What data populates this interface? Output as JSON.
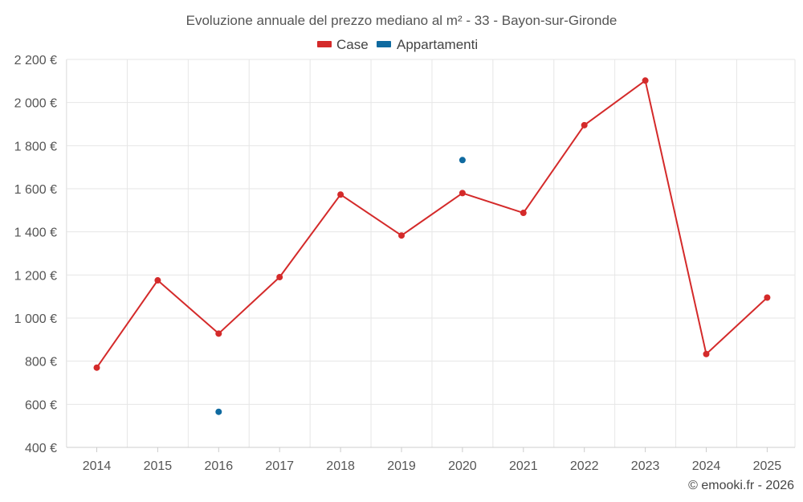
{
  "chart_data": {
    "type": "line",
    "title": "Evoluzione annuale del prezzo mediano al m² - 33 - Bayon-sur-Gironde",
    "xlabel": "",
    "ylabel": "",
    "categories": [
      "2014",
      "2015",
      "2016",
      "2017",
      "2018",
      "2019",
      "2020",
      "2021",
      "2022",
      "2023",
      "2024",
      "2025"
    ],
    "ylim": [
      400,
      2200
    ],
    "yticks": [
      400,
      600,
      800,
      1000,
      1200,
      1400,
      1600,
      1800,
      2000,
      2200
    ],
    "ytick_labels": [
      "400 €",
      "600 €",
      "800 €",
      "1 000 €",
      "1 200 €",
      "1 400 €",
      "1 600 €",
      "1 800 €",
      "2 000 €",
      "2 200 €"
    ],
    "grid": true,
    "legend_position": "top-center",
    "series": [
      {
        "name": "Case",
        "color": "#d42a2a",
        "values": [
          770,
          1175,
          928,
          1190,
          1573,
          1383,
          1580,
          1488,
          1895,
          2102,
          833,
          1095
        ]
      },
      {
        "name": "Appartamenti",
        "color": "#0f6aa0",
        "values": [
          null,
          null,
          565,
          null,
          null,
          null,
          1733,
          null,
          null,
          null,
          null,
          null
        ]
      }
    ]
  },
  "credit": "© emooki.fr - 2026"
}
